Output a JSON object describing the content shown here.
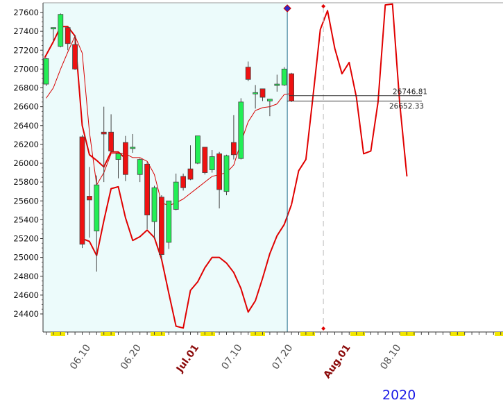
{
  "chart_data": {
    "type": "candlestick",
    "year_label": "2020",
    "ylim": [
      24200,
      27700
    ],
    "y_ticks": [
      24400,
      24600,
      24800,
      25000,
      25200,
      25400,
      25600,
      25800,
      26000,
      26200,
      26400,
      26600,
      26800,
      27000,
      27200,
      27400,
      27600
    ],
    "x_tick_labels": [
      {
        "text": "06.10",
        "idx": 6,
        "month_start": false
      },
      {
        "text": "06.20",
        "idx": 13,
        "month_start": false
      },
      {
        "text": "Jul.01",
        "idx": 21,
        "month_start": true
      },
      {
        "text": "07.10",
        "idx": 27,
        "month_start": false
      },
      {
        "text": "07.20",
        "idx": 34,
        "month_start": false
      },
      {
        "text": "Aug.01",
        "idx": 42,
        "month_start": true
      },
      {
        "text": "08.10",
        "idx": 49,
        "month_start": false
      }
    ],
    "price_annotations": {
      "upper": "26746.81",
      "lower": "26652.33"
    },
    "candles": [
      {
        "o": 26840,
        "h": 27120,
        "l": 26820,
        "c": 27110
      },
      {
        "o": 27430,
        "h": 27440,
        "l": 27300,
        "c": 27440
      },
      {
        "o": 27240,
        "h": 27590,
        "l": 27230,
        "c": 27580
      },
      {
        "o": 27440,
        "h": 27440,
        "l": 27200,
        "c": 27270
      },
      {
        "o": 27260,
        "h": 27360,
        "l": 26990,
        "c": 27000
      },
      {
        "o": 26280,
        "h": 26300,
        "l": 25100,
        "c": 25140
      },
      {
        "o": 25650,
        "h": 25960,
        "l": 25210,
        "c": 25610
      },
      {
        "o": 25280,
        "h": 25870,
        "l": 24850,
        "c": 25770
      },
      {
        "o": 26330,
        "h": 26600,
        "l": 25800,
        "c": 26310
      },
      {
        "o": 26330,
        "h": 26520,
        "l": 26120,
        "c": 26130
      },
      {
        "o": 26040,
        "h": 26100,
        "l": 25840,
        "c": 26100
      },
      {
        "o": 26220,
        "h": 26290,
        "l": 25810,
        "c": 25880
      },
      {
        "o": 26170,
        "h": 26310,
        "l": 26110,
        "c": 26170
      },
      {
        "o": 25880,
        "h": 26050,
        "l": 25800,
        "c": 26040
      },
      {
        "o": 25990,
        "h": 26010,
        "l": 25300,
        "c": 25450
      },
      {
        "o": 25380,
        "h": 25760,
        "l": 25200,
        "c": 25740
      },
      {
        "o": 25640,
        "h": 25660,
        "l": 24980,
        "c": 25030
      },
      {
        "o": 25160,
        "h": 25600,
        "l": 25090,
        "c": 25600
      },
      {
        "o": 25510,
        "h": 25890,
        "l": 25500,
        "c": 25800
      },
      {
        "o": 25860,
        "h": 25890,
        "l": 25710,
        "c": 25740
      },
      {
        "o": 25940,
        "h": 26190,
        "l": 25820,
        "c": 25830
      },
      {
        "o": 26000,
        "h": 26290,
        "l": 25990,
        "c": 26290
      },
      {
        "o": 26170,
        "h": 26170,
        "l": 25880,
        "c": 25900
      },
      {
        "o": 25930,
        "h": 26140,
        "l": 25900,
        "c": 26070
      },
      {
        "o": 26100,
        "h": 26120,
        "l": 25520,
        "c": 25720
      },
      {
        "o": 25700,
        "h": 26090,
        "l": 25660,
        "c": 26080
      },
      {
        "o": 26220,
        "h": 26510,
        "l": 26040,
        "c": 26090
      },
      {
        "o": 26050,
        "h": 26690,
        "l": 26040,
        "c": 26650
      },
      {
        "o": 27020,
        "h": 27080,
        "l": 26870,
        "c": 26890
      },
      {
        "o": 26740,
        "h": 26830,
        "l": 26580,
        "c": 26750
      },
      {
        "o": 26790,
        "h": 26790,
        "l": 26660,
        "c": 26700
      },
      {
        "o": 26660,
        "h": 26680,
        "l": 26500,
        "c": 26680
      },
      {
        "o": 26840,
        "h": 26940,
        "l": 26760,
        "c": 26840
      },
      {
        "o": 26830,
        "h": 27020,
        "l": 26820,
        "c": 27000
      },
      {
        "o": 26950,
        "h": 26960,
        "l": 26650,
        "c": 26660
      }
    ],
    "ma_line": [
      [
        0,
        26690
      ],
      [
        1,
        26800
      ],
      [
        2,
        27000
      ],
      [
        3,
        27180
      ],
      [
        4,
        27350
      ],
      [
        5,
        27170
      ],
      [
        6,
        26330
      ],
      [
        7,
        25770
      ],
      [
        8,
        25900
      ],
      [
        9,
        26100
      ],
      [
        10,
        26110
      ],
      [
        11,
        26100
      ],
      [
        12,
        26060
      ],
      [
        13,
        26060
      ],
      [
        14,
        26020
      ],
      [
        15,
        25880
      ],
      [
        16,
        25580
      ],
      [
        17,
        25550
      ],
      [
        18,
        25580
      ],
      [
        19,
        25620
      ],
      [
        20,
        25680
      ],
      [
        21,
        25740
      ],
      [
        22,
        25800
      ],
      [
        23,
        25860
      ],
      [
        24,
        25880
      ],
      [
        25,
        25900
      ],
      [
        26,
        25980
      ],
      [
        27,
        26220
      ],
      [
        28,
        26440
      ],
      [
        29,
        26560
      ],
      [
        30,
        26590
      ],
      [
        31,
        26600
      ],
      [
        32,
        26630
      ],
      [
        33,
        26730
      ],
      [
        34,
        26740
      ]
    ],
    "upper_band_line": [
      [
        -0.2,
        27120
      ],
      [
        1,
        27290
      ],
      [
        2,
        27450
      ],
      [
        3,
        27450
      ],
      [
        4,
        27350
      ],
      [
        5,
        26400
      ],
      [
        6,
        26090
      ],
      [
        7,
        26030
      ],
      [
        8,
        25960
      ],
      [
        9,
        26120
      ],
      [
        10,
        26120
      ],
      [
        11,
        26050
      ]
    ],
    "lower_band_line": [
      [
        5,
        25200
      ],
      [
        6,
        25170
      ],
      [
        7,
        25020
      ],
      [
        8,
        25390
      ],
      [
        9,
        25730
      ],
      [
        10,
        25750
      ],
      [
        11,
        25420
      ],
      [
        12,
        25180
      ],
      [
        13,
        25220
      ],
      [
        14,
        25290
      ],
      [
        15,
        25210
      ],
      [
        16,
        24980
      ],
      [
        17,
        24620
      ],
      [
        18,
        24270
      ],
      [
        19,
        24250
      ],
      [
        20,
        24650
      ],
      [
        21,
        24740
      ],
      [
        22,
        24890
      ],
      [
        23,
        25000
      ],
      [
        24,
        25000
      ],
      [
        25,
        24940
      ],
      [
        26,
        24840
      ],
      [
        27,
        24670
      ],
      [
        28,
        24420
      ],
      [
        29,
        24540
      ],
      [
        30,
        24780
      ],
      [
        31,
        25040
      ],
      [
        32,
        25230
      ],
      [
        33,
        25350
      ],
      [
        34,
        25560
      ]
    ],
    "forecast_line": [
      [
        34,
        25560
      ],
      [
        35,
        25920
      ],
      [
        36,
        26040
      ],
      [
        37,
        26720
      ],
      [
        38,
        27420
      ],
      [
        39,
        27620
      ],
      [
        40,
        27220
      ],
      [
        41,
        26950
      ],
      [
        42,
        27070
      ],
      [
        43,
        26700
      ],
      [
        44,
        26100
      ],
      [
        45,
        26130
      ],
      [
        46,
        26650
      ],
      [
        47,
        27680
      ],
      [
        48,
        27690
      ],
      [
        49,
        26640
      ],
      [
        50,
        25860
      ]
    ],
    "current_index": 34,
    "forecast_marker_index": 39
  }
}
